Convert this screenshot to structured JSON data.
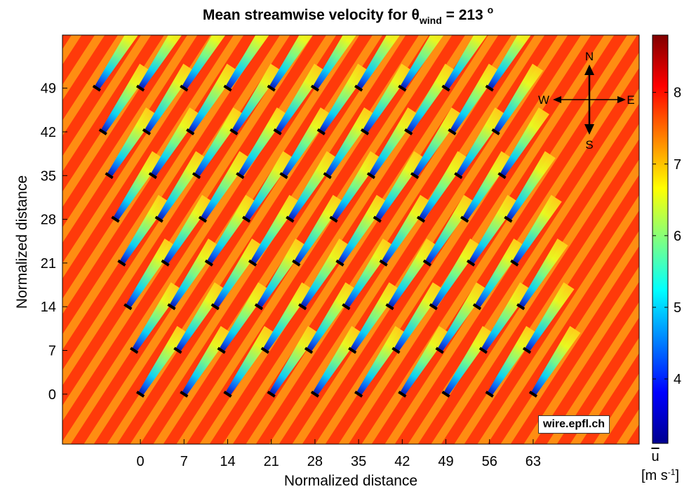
{
  "chart_data": {
    "type": "heatmap",
    "title": "Mean streamwise velocity for",
    "title_symbol": "θ",
    "title_subscript": "wind",
    "title_value": "= 213",
    "title_superscript": "o",
    "xlabel": "Normalized distance",
    "ylabel": "Normalized distance",
    "x_ticks": [
      "0",
      "7",
      "14",
      "21",
      "28",
      "35",
      "42",
      "49",
      "56",
      "63"
    ],
    "y_ticks": [
      "0",
      "7",
      "14",
      "21",
      "28",
      "35",
      "42",
      "49"
    ],
    "x_tick_values": [
      0,
      7,
      14,
      21,
      28,
      35,
      42,
      49,
      56,
      63
    ],
    "y_tick_values": [
      0,
      7,
      14,
      21,
      28,
      35,
      42,
      49
    ],
    "xlim": [
      -12.5,
      80
    ],
    "ylim": [
      -8,
      57.5
    ],
    "colorbar": {
      "label": "u",
      "unit_text": "[m s",
      "unit_sup": "-1",
      "unit_close": "]",
      "ticks": [
        "4",
        "5",
        "6",
        "7",
        "8"
      ],
      "tick_values": [
        4,
        5,
        6,
        7,
        8
      ],
      "range": [
        3.1,
        8.8
      ],
      "colors": [
        "#00008f",
        "#0000ff",
        "#0080ff",
        "#00ffff",
        "#80ff80",
        "#ffff00",
        "#ff8000",
        "#ff0000",
        "#800000"
      ]
    },
    "freestream_color": "#ff3a0a",
    "wake_base_color": "#ffd21a",
    "turbines": {
      "rows": 8,
      "cols": 10,
      "row_y": [
        0,
        7,
        14,
        21,
        28,
        35,
        42,
        49
      ],
      "row_shift_per_row": -1.0,
      "wind_direction_deg": 213,
      "description_x_of_first_in_each_row": [
        0,
        -1,
        -2,
        -3,
        -4,
        -5,
        -6,
        -7
      ]
    },
    "compass": {
      "north": "N",
      "south": "S",
      "east": "E",
      "west": "W"
    },
    "credit": "wire.epfl.ch"
  }
}
